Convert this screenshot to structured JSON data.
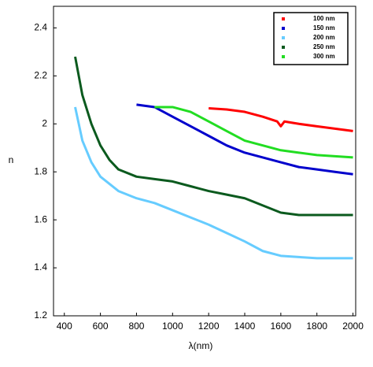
{
  "chart_data": {
    "type": "line",
    "xlabel": "λ(nm)",
    "ylabel": "n",
    "xlim": [
      340,
      2015
    ],
    "ylim": [
      1.2,
      2.49
    ],
    "xticks": [
      400,
      600,
      800,
      1000,
      1200,
      1400,
      1600,
      1800,
      2000
    ],
    "yticks": [
      1.2,
      1.4,
      1.6,
      1.8,
      2,
      2.2,
      2.4
    ],
    "legend": "upper right",
    "series": [
      {
        "name": "100 nm",
        "color": "#ff0000",
        "x": [
          1200,
          1300,
          1400,
          1500,
          1580,
          1600,
          1620,
          1700,
          1800,
          1900,
          2000
        ],
        "values": [
          2.065,
          2.06,
          2.05,
          2.03,
          2.01,
          1.99,
          2.01,
          2.0,
          1.99,
          1.98,
          1.97
        ]
      },
      {
        "name": "150 nm",
        "color": "#0000cc",
        "x": [
          800,
          900,
          1000,
          1100,
          1200,
          1300,
          1400,
          1500,
          1600,
          1700,
          1800,
          1900,
          2000
        ],
        "values": [
          2.08,
          2.07,
          2.03,
          1.99,
          1.95,
          1.91,
          1.88,
          1.86,
          1.84,
          1.82,
          1.81,
          1.8,
          1.79
        ]
      },
      {
        "name": "200 nm",
        "color": "#66ccff",
        "x": [
          460,
          500,
          550,
          600,
          700,
          800,
          900,
          1000,
          1100,
          1200,
          1300,
          1400,
          1500,
          1600,
          1700,
          1800,
          1900,
          2000
        ],
        "values": [
          2.07,
          1.93,
          1.84,
          1.78,
          1.72,
          1.69,
          1.67,
          1.64,
          1.61,
          1.58,
          1.545,
          1.51,
          1.47,
          1.45,
          1.445,
          1.44,
          1.44,
          1.44
        ]
      },
      {
        "name": "250 nm",
        "color": "#0b5a1e",
        "x": [
          460,
          500,
          550,
          600,
          650,
          700,
          800,
          900,
          1000,
          1100,
          1200,
          1300,
          1400,
          1500,
          1600,
          1700,
          1800,
          1900,
          2000
        ],
        "values": [
          2.28,
          2.12,
          2.0,
          1.91,
          1.85,
          1.81,
          1.78,
          1.77,
          1.76,
          1.74,
          1.72,
          1.705,
          1.69,
          1.66,
          1.63,
          1.62,
          1.62,
          1.62,
          1.62
        ]
      },
      {
        "name": "300 nm",
        "color": "#22dd22",
        "x": [
          900,
          1000,
          1100,
          1200,
          1300,
          1400,
          1500,
          1600,
          1700,
          1800,
          1900,
          2000
        ],
        "values": [
          2.07,
          2.07,
          2.05,
          2.01,
          1.97,
          1.93,
          1.91,
          1.89,
          1.88,
          1.87,
          1.865,
          1.86
        ]
      }
    ]
  }
}
